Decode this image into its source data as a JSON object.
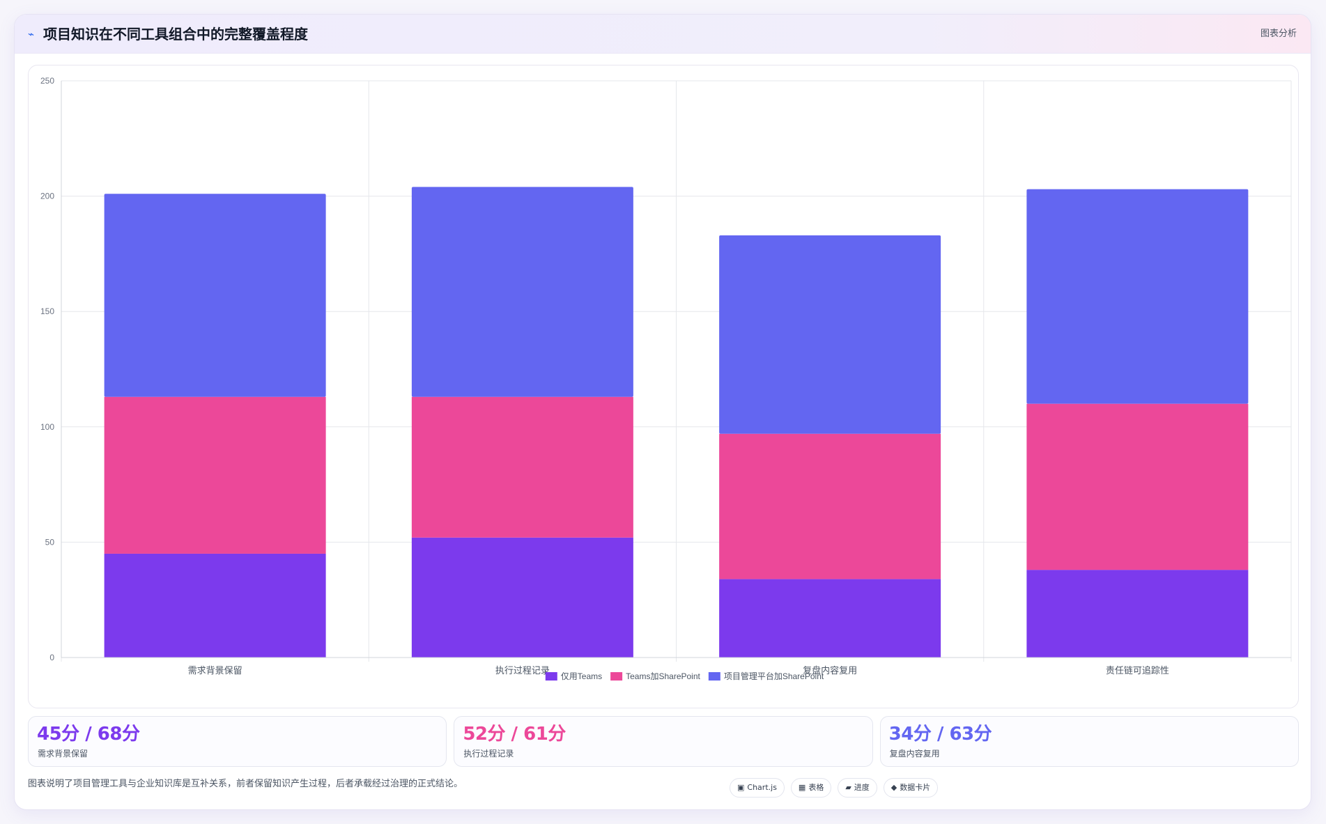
{
  "header": {
    "icon": "chart-line-icon",
    "title": "项目知识在不同工具组合中的完整覆盖程度",
    "tag": "图表分析"
  },
  "colors": {
    "teams_only": "#7c3aed",
    "teams_sharepoint": "#ec4899",
    "pm_sharepoint": "#6366f1",
    "grid": "#e5e7eb",
    "tick": "#6b7280"
  },
  "chart_data": {
    "type": "bar",
    "stacked": true,
    "categories": [
      "需求背景保留",
      "执行过程记录",
      "复盘内容复用",
      "责任链可追踪性"
    ],
    "series": [
      {
        "name": "仅用Teams",
        "values": [
          45,
          52,
          34,
          38
        ],
        "color": "#7c3aed"
      },
      {
        "name": "Teams加SharePoint",
        "values": [
          68,
          61,
          63,
          72
        ],
        "color": "#ec4899"
      },
      {
        "name": "项目管理平台加SharePoint",
        "values": [
          88,
          91,
          86,
          93
        ],
        "color": "#6366f1"
      }
    ],
    "ylim": [
      0,
      250
    ],
    "yticks": [
      0,
      50,
      100,
      150,
      200,
      250
    ],
    "grid": true,
    "legend": "bottom-center"
  },
  "stats": [
    {
      "value": "45分 / 68分",
      "label": "需求背景保留",
      "color": "#7c3aed"
    },
    {
      "value": "52分 / 61分",
      "label": "执行过程记录",
      "color": "#ec4899"
    },
    {
      "value": "34分 / 63分",
      "label": "复盘内容复用",
      "color": "#6366f1"
    }
  ],
  "footer": {
    "note": "图表说明了项目管理工具与企业知识库是互补关系，前者保留知识产生过程，后者承载经过治理的正式结论。",
    "chips": [
      {
        "icon": "▣",
        "icon_name": "chart-icon",
        "label": "Chart.js"
      },
      {
        "icon": "▦",
        "icon_name": "table-icon",
        "label": "表格"
      },
      {
        "icon": "▰",
        "icon_name": "progress-icon",
        "label": "进度"
      },
      {
        "icon": "◆",
        "icon_name": "card-icon",
        "label": "数据卡片"
      }
    ]
  }
}
